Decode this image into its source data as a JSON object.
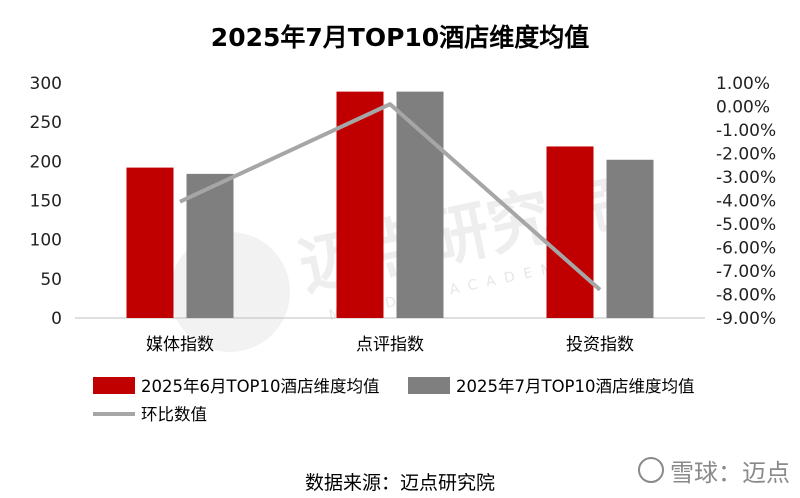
{
  "chart_data": {
    "type": "bar",
    "title": "2025年7月TOP10酒店维度均值",
    "categories": [
      "媒体指数",
      "点评指数",
      "投资指数"
    ],
    "series": [
      {
        "name": "2025年6月TOP10酒店维度均值",
        "type": "bar",
        "axis": "left",
        "color": "#c00000",
        "values": [
          192,
          289,
          219
        ]
      },
      {
        "name": "2025年7月TOP10酒店维度均值",
        "type": "bar",
        "axis": "left",
        "color": "#7f7f7f",
        "values": [
          184,
          289,
          202
        ]
      },
      {
        "name": "环比数值",
        "type": "line",
        "axis": "right",
        "color": "#a6a6a6",
        "values": [
          -4.05,
          0.1,
          -7.8
        ]
      }
    ],
    "ylim_left": [
      0,
      300
    ],
    "ytick_left": [
      0,
      50,
      100,
      150,
      200,
      250,
      300
    ],
    "ylim_right": [
      -9,
      1
    ],
    "ytick_right": [
      1,
      0,
      -1,
      -2,
      -3,
      -4,
      -5,
      -6,
      -7,
      -8,
      -9
    ],
    "right_tick_labels": [
      "1.00%",
      "0.00%",
      "-1.00%",
      "-2.00%",
      "-3.00%",
      "-4.00%",
      "-5.00%",
      "-6.00%",
      "-7.00%",
      "-8.00%",
      "-9.00%"
    ],
    "legend_position": "bottom",
    "grid": false
  },
  "source_text": "数据来源：迈点研究院",
  "watermark": {
    "big_text": "迈点研究院",
    "small_text": "MEADIN ACADEMY",
    "brand": "雪球：迈点"
  }
}
